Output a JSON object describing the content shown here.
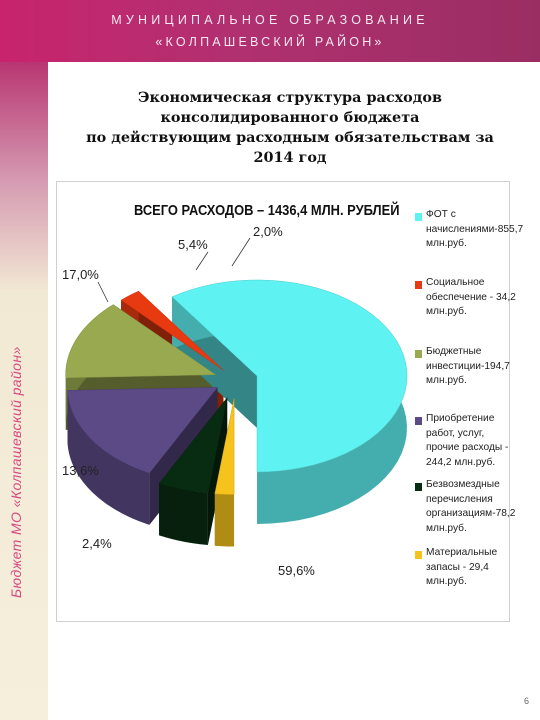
{
  "header": {
    "line1": "МУНИЦИПАЛЬНОЕ ОБРАЗОВАНИЕ",
    "line2": "«КОЛПАШЕВСКИЙ РАЙОН»"
  },
  "sidebar": {
    "vertical_text": "Бюджет МО «Колпашевский район»"
  },
  "slide_title": {
    "line1": "Экономическая структура расходов",
    "line2": "консолидированного бюджета",
    "line3": "по действующим расходным обязательствам за",
    "line4": "2014 год"
  },
  "page_number": "6",
  "chart_data": {
    "type": "pie",
    "title": "ВСЕГО РАСХОДОВ – 1436,4 МЛН. РУБЛЕЙ",
    "legend_position": "right",
    "slices": [
      {
        "name": "ФОТ с начислениями-855,7 млн.руб.",
        "value": 855.7,
        "percent_label": "59,6%",
        "color": "#5ef2f2"
      },
      {
        "name": "Социальное обеспечение - 34,2 млн.руб.",
        "value": 34.2,
        "percent_label": "2,4%",
        "color": "#e83a10"
      },
      {
        "name": "Бюджетные инвестиции-194,7 млн.руб.",
        "value": 194.7,
        "percent_label": "13,6%",
        "color": "#98a94f"
      },
      {
        "name": "Приобретение работ, услуг, прочие расходы - 244,2 млн.руб.",
        "value": 244.2,
        "percent_label": "17,0%",
        "color": "#5b4a86"
      },
      {
        "name": "Безвозмездные перечисления организациям-78,2 млн.руб.",
        "value": 78.2,
        "percent_label": "5,4%",
        "color": "#082c12"
      },
      {
        "name": "Материальные запасы - 29,4 млн.руб.",
        "value": 29.4,
        "percent_label": "2,0%",
        "color": "#f6c21c"
      }
    ]
  }
}
